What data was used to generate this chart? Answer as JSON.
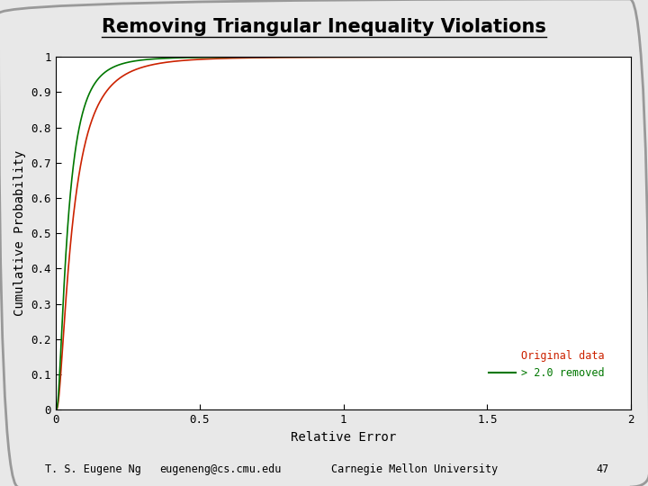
{
  "title": "Removing Triangular Inequality Violations",
  "xlabel": "Relative Error",
  "ylabel": "Cumulative Probability",
  "xlim": [
    0,
    2
  ],
  "ylim": [
    0,
    1
  ],
  "xticks": [
    0,
    0.5,
    1,
    1.5,
    2
  ],
  "xtick_labels": [
    "0",
    "0.5",
    "1",
    "1.5",
    "2"
  ],
  "yticks": [
    0,
    0.1,
    0.2,
    0.3,
    0.4,
    0.5,
    0.6,
    0.7,
    0.8,
    0.9,
    1
  ],
  "ytick_labels": [
    "0",
    "0.1",
    "0.2",
    "0.3",
    "0.4",
    "0.5",
    "0.6",
    "0.7",
    "0.8",
    "0.9",
    "1"
  ],
  "legend_labels": [
    "Original data",
    "> 2.0 removed"
  ],
  "legend_colors": [
    "#cc2200",
    "#007700"
  ],
  "line1_color": "#cc2200",
  "line2_color": "#007700",
  "line1_style": "-",
  "line2_style": "-",
  "background_color": "#ffffff",
  "fig_background": "#e8e8e8",
  "border_color": "#999999",
  "footer_parts": [
    "T. S. Eugene Ng",
    "eugeneng@cs.cmu.edu",
    "Carnegie Mellon University",
    "47"
  ],
  "cdf1_params": {
    "scale": 0.13,
    "shape": 0.55
  },
  "cdf2_params": {
    "scale": 0.1,
    "shape": 0.52
  }
}
